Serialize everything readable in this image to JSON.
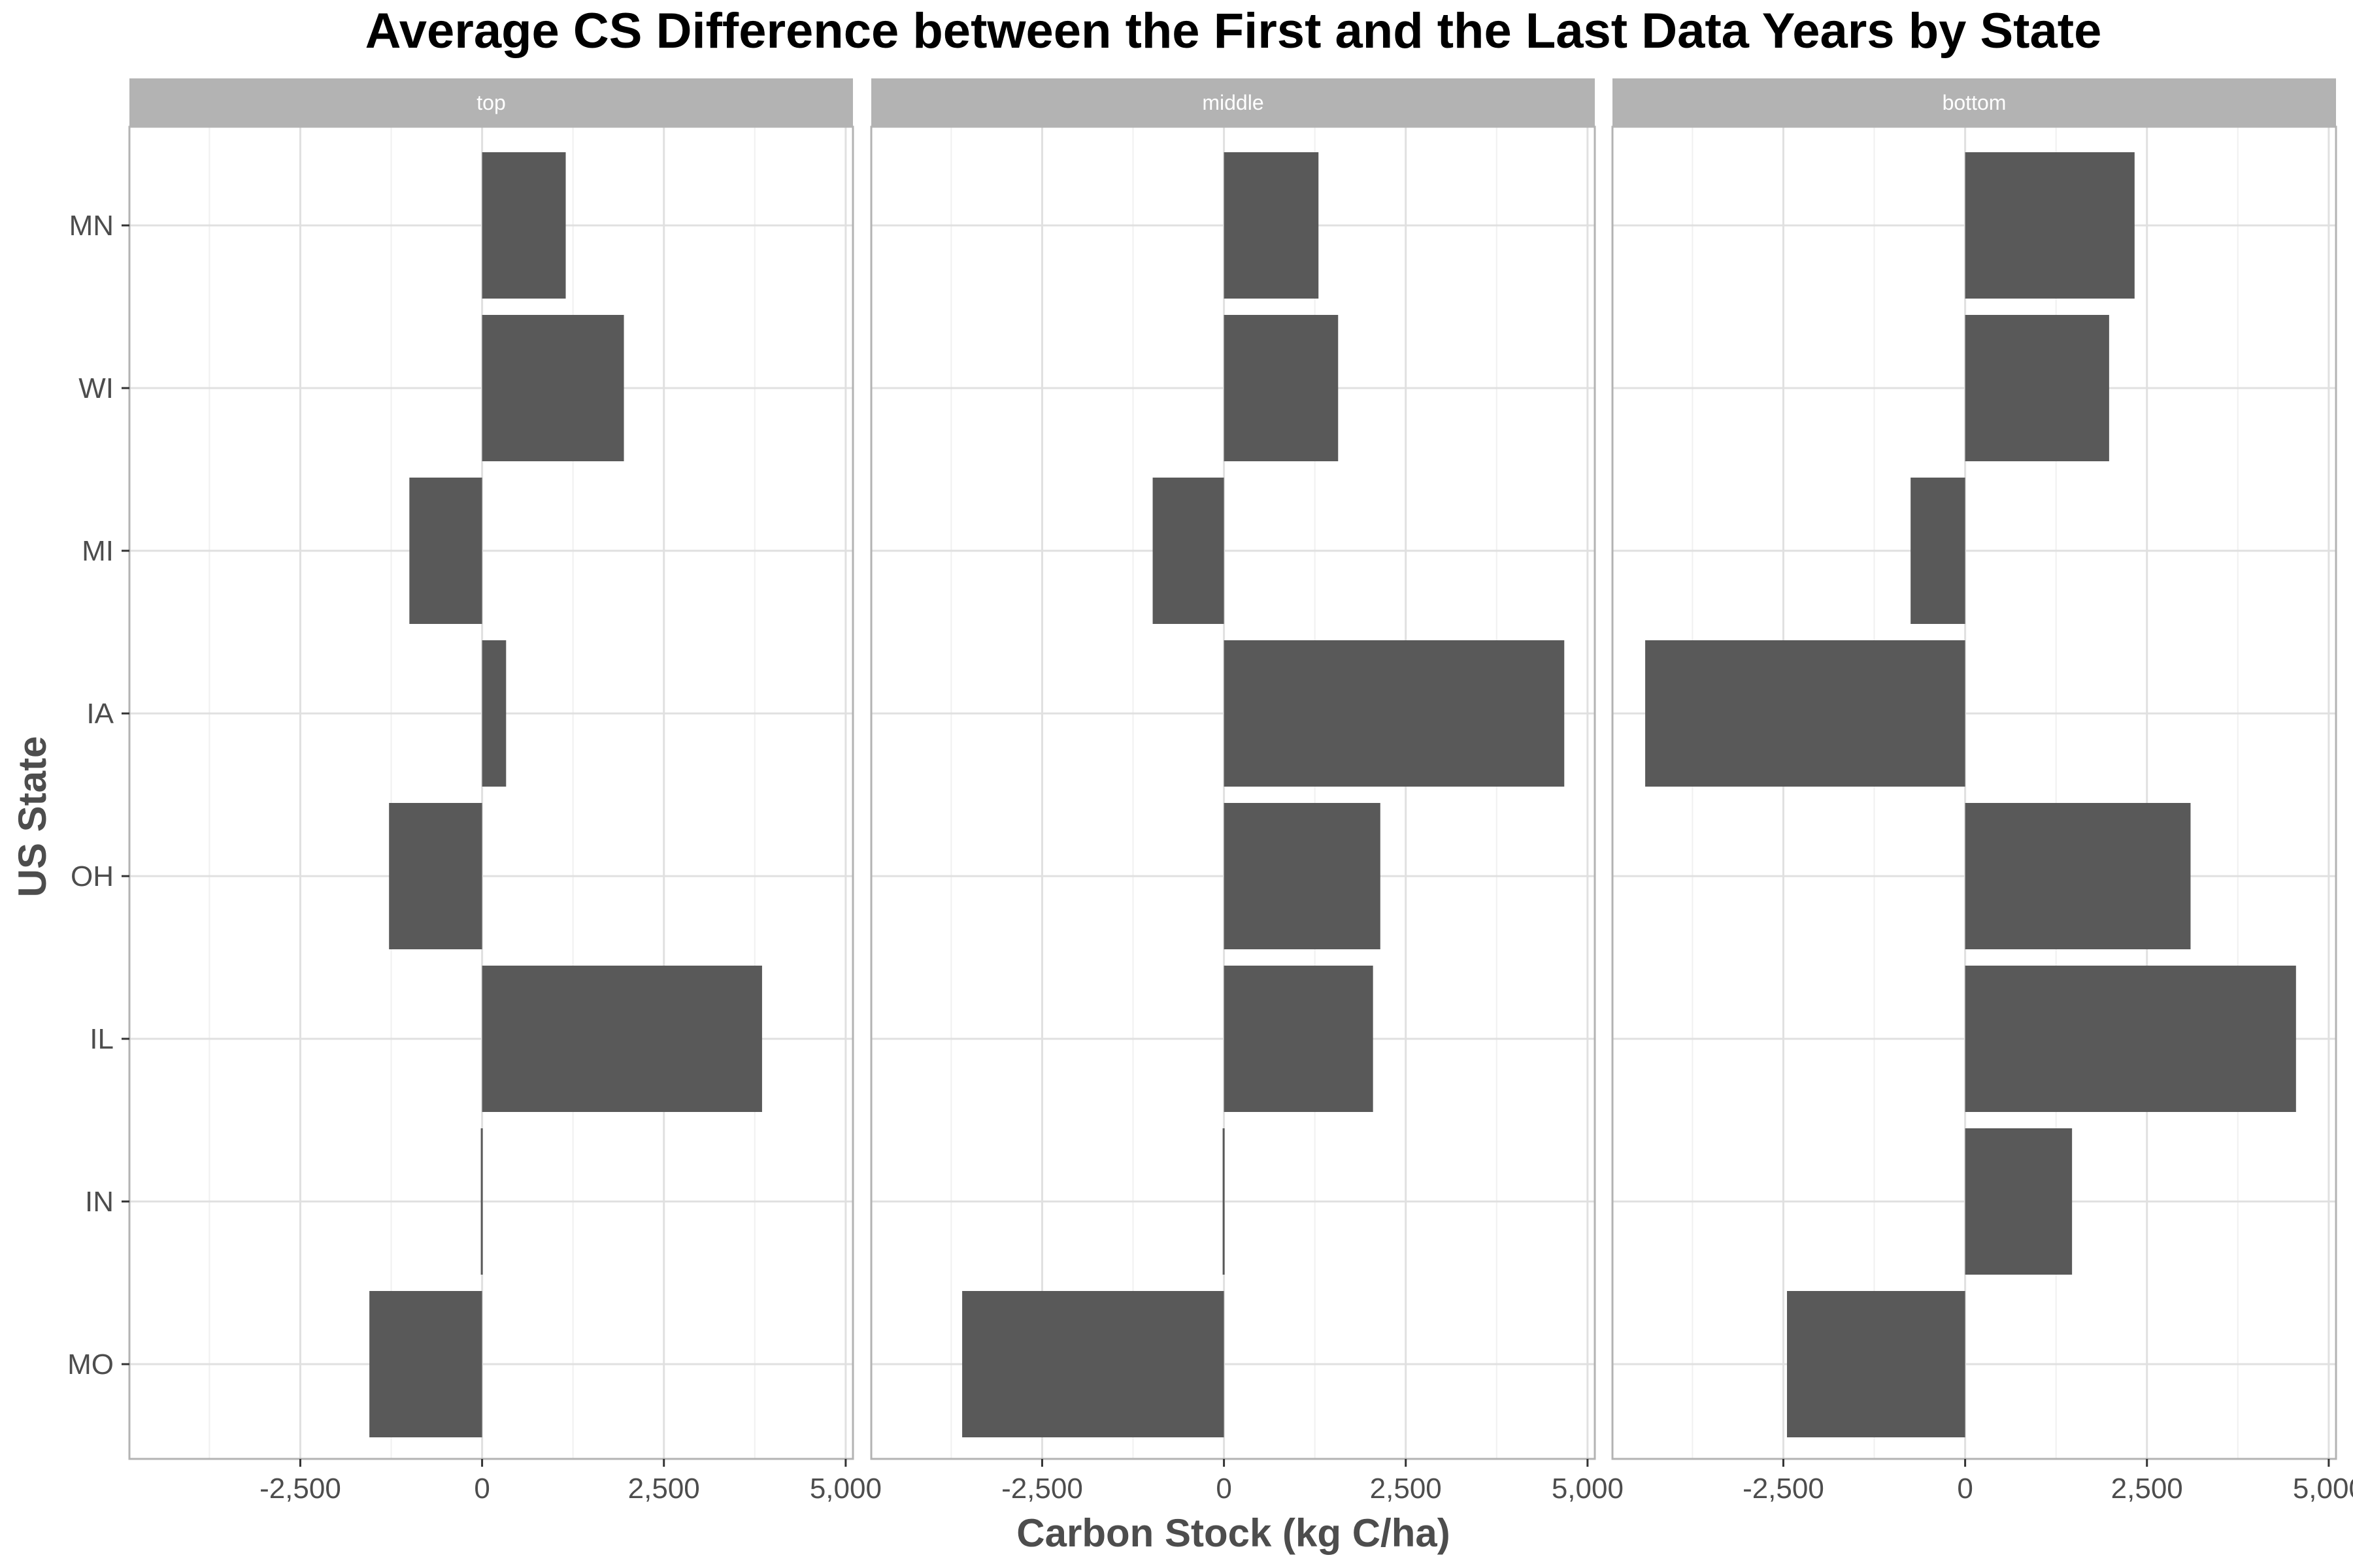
{
  "chart_data": {
    "type": "bar",
    "orientation": "horizontal",
    "title": "Average CS Difference between the First and the Last Data Years by State",
    "xlabel": "Carbon Stock (kg C/ha)",
    "ylabel": "US State",
    "categories": [
      "MN",
      "WI",
      "MI",
      "IA",
      "OH",
      "IL",
      "IN",
      "MO"
    ],
    "xlim": [
      -4850,
      5100
    ],
    "xticks": [
      -2500,
      0,
      2500,
      5000
    ],
    "xtick_labels": [
      "-2,500",
      "0",
      "2,500",
      "5,000"
    ],
    "grid": true,
    "facets": [
      {
        "name": "top",
        "values": [
          1150,
          1950,
          -1000,
          330,
          -1280,
          3850,
          0,
          -1550
        ]
      },
      {
        "name": "middle",
        "values": [
          1300,
          1570,
          -980,
          4680,
          2150,
          2050,
          -25,
          -3600
        ]
      },
      {
        "name": "bottom",
        "values": [
          2330,
          1980,
          -750,
          -4400,
          3100,
          4550,
          1470,
          -2450
        ]
      }
    ],
    "colors": {
      "bar": "#595959",
      "strip_fill": "#b3b3b3",
      "strip_text": "#ffffff",
      "grid_major": "#e0e0e0",
      "grid_minor": "#f0f0f0",
      "panel_border": "#b3b3b3",
      "axis_text": "#4d4d4d",
      "title": "#000000"
    }
  }
}
